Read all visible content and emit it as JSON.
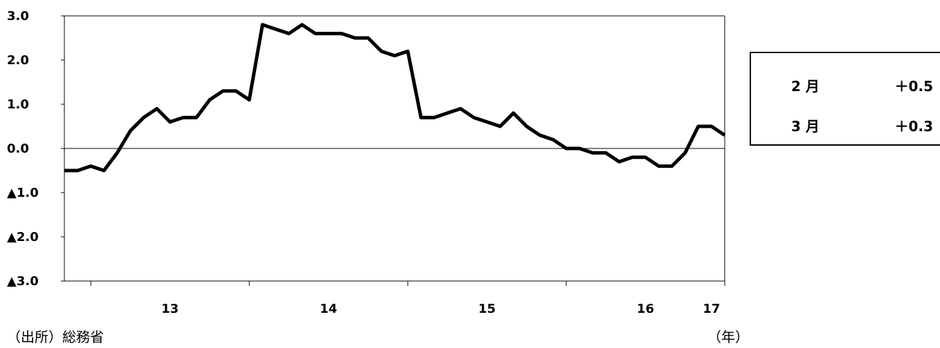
{
  "chart_data": {
    "type": "line",
    "yticks": [
      "3.0",
      "2.0",
      "1.0",
      "0.0",
      "▲1.0",
      "▲2.0",
      "▲3.0"
    ],
    "ylim": [
      -3,
      3
    ],
    "xticks": [
      "13",
      "14",
      "15",
      "16",
      "17"
    ],
    "x_unit": "（年）",
    "series": [
      {
        "color": "#000000",
        "values": [
          -0.5,
          -0.5,
          -0.4,
          -0.5,
          -0.1,
          0.4,
          0.7,
          0.9,
          0.6,
          0.7,
          0.7,
          1.1,
          1.3,
          1.3,
          1.1,
          2.8,
          2.7,
          2.6,
          2.8,
          2.6,
          2.6,
          2.6,
          2.5,
          2.5,
          2.2,
          2.1,
          2.2,
          0.7,
          0.7,
          0.8,
          0.9,
          0.7,
          0.6,
          0.5,
          0.8,
          0.5,
          0.3,
          0.2,
          0.0,
          0.0,
          -0.1,
          -0.1,
          -0.3,
          -0.2,
          -0.2,
          -0.4,
          -0.4,
          -0.1,
          0.5,
          0.5,
          0.3
        ]
      }
    ]
  },
  "legend": {
    "rows": [
      {
        "month": "2 月",
        "value": "＋0.5"
      },
      {
        "month": "3 月",
        "value": "＋0.3"
      }
    ]
  },
  "source": "（出所）総務省"
}
